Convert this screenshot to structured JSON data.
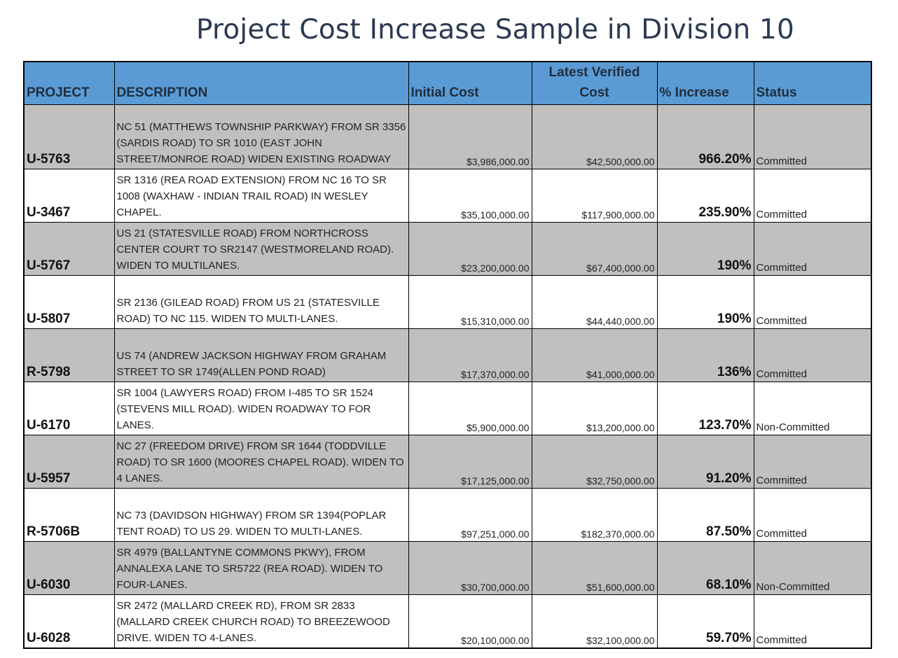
{
  "title": "Project Cost Increase Sample in Division 10",
  "headers": {
    "project": "PROJECT",
    "description": "DESCRIPTION",
    "initial_cost": "Initial Cost",
    "latest_cost_line1": "Latest Verified",
    "latest_cost_line2": "Cost",
    "increase": "% Increase",
    "status": "Status"
  },
  "rows": [
    {
      "project": "U-5763",
      "description": "NC 51 (MATTHEWS TOWNSHIP PARKWAY) FROM SR 3356 (SARDIS ROAD) TO SR 1010 (EAST JOHN STREET/MONROE ROAD) WIDEN EXISTING ROADWAY",
      "initial_cost": "$3,986,000.00",
      "latest_cost": "$42,500,000.00",
      "increase": "966.20%",
      "status": "Committed"
    },
    {
      "project": "U-3467",
      "description": "SR 1316 (REA ROAD EXTENSION) FROM NC 16 TO SR 1008 (WAXHAW - INDIAN TRAIL ROAD) IN WESLEY CHAPEL.",
      "initial_cost": "$35,100,000.00",
      "latest_cost": "$117,900,000.00",
      "increase": "235.90%",
      "status": "Committed"
    },
    {
      "project": "U-5767",
      "description": "US 21 (STATESVILLE ROAD) FROM NORTHCROSS CENTER COURT TO SR2147 (WESTMORELAND ROAD). WIDEN TO MULTILANES.",
      "initial_cost": "$23,200,000.00",
      "latest_cost": "$67,400,000.00",
      "increase": "190%",
      "status": "Committed"
    },
    {
      "project": "U-5807",
      "description": "SR 2136 (GILEAD ROAD) FROM US 21 (STATESVILLE ROAD) TO NC 115. WIDEN TO MULTI-LANES.",
      "initial_cost": "$15,310,000.00",
      "latest_cost": "$44,440,000.00",
      "increase": "190%",
      "status": "Committed"
    },
    {
      "project": "R-5798",
      "description": "US 74 (ANDREW JACKSON HIGHWAY FROM GRAHAM STREET TO SR 1749(ALLEN POND ROAD)",
      "initial_cost": "$17,370,000.00",
      "latest_cost": "$41,000,000.00",
      "increase": "136%",
      "status": "Committed"
    },
    {
      "project": "U-6170",
      "description": "SR 1004 (LAWYERS ROAD) FROM I-485 TO SR 1524 (STEVENS MILL ROAD). WIDEN ROADWAY TO FOR LANES.",
      "initial_cost": "$5,900,000.00",
      "latest_cost": "$13,200,000.00",
      "increase": "123.70%",
      "status": "Non-Committed"
    },
    {
      "project": "U-5957",
      "description": "NC 27 (FREEDOM DRIVE) FROM SR 1644 (TODDVILLE ROAD) TO SR 1600 (MOORES CHAPEL ROAD). WIDEN TO 4 LANES.",
      "initial_cost": "$17,125,000.00",
      "latest_cost": "$32,750,000.00",
      "increase": "91.20%",
      "status": "Committed"
    },
    {
      "project": "R-5706B",
      "description": "NC 73 (DAVIDSON HIGHWAY) FROM SR 1394(POPLAR TENT ROAD) TO US 29. WIDEN TO MULTI-LANES.",
      "initial_cost": "$97,251,000.00",
      "latest_cost": "$182,370,000.00",
      "increase": "87.50%",
      "status": "Committed"
    },
    {
      "project": "U-6030",
      "description": "SR 4979 (BALLANTYNE COMMONS PKWY), FROM ANNALEXA LANE TO SR5722 (REA ROAD). WIDEN TO FOUR-LANES.",
      "initial_cost": "$30,700,000.00",
      "latest_cost": "$51,600,000.00",
      "increase": "68.10%",
      "status": "Non-Committed"
    },
    {
      "project": "U-6028",
      "description": "SR 2472 (MALLARD CREEK RD), FROM SR 2833 (MALLARD CREEK CHURCH ROAD) TO BREEZEWOOD DRIVE. WIDEN TO 4-LANES.",
      "initial_cost": "$20,100,000.00",
      "latest_cost": "$32,100,000.00",
      "increase": "59.70%",
      "status": "Committed"
    }
  ],
  "colors": {
    "header_bg": "#5b9bd5",
    "shaded_row_bg": "#c0c0c0",
    "title_color": "#2b3a52"
  }
}
